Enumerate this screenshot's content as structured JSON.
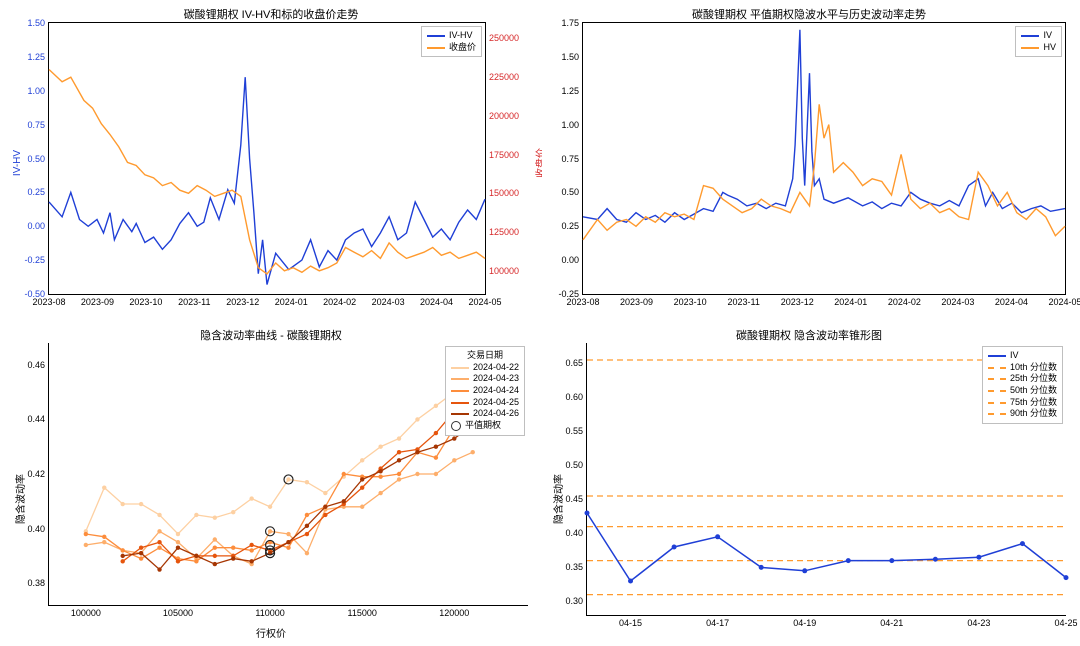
{
  "colors": {
    "blue": "#1f3fd6",
    "orange": "#ff9a2e",
    "red_axis": "#d62728",
    "grid": "#bfbfbf",
    "smile_palette": [
      "#fdd0a2",
      "#fdae6b",
      "#fd8d3c",
      "#e6550d",
      "#a63603"
    ],
    "dash": "#ff9a2e"
  },
  "chart1": {
    "title": "碳酸锂期权 IV-HV和标的收盘价走势",
    "ylabel_left": "IV-HV",
    "ylabel_right": "收盘价",
    "legend": [
      "IV-HV",
      "收盘价"
    ],
    "xticks": [
      "2023-08",
      "2023-09",
      "2023-10",
      "2023-11",
      "2023-12",
      "2024-01",
      "2024-02",
      "2024-03",
      "2024-04",
      "2024-05"
    ],
    "ylim_left": [
      -0.5,
      1.5
    ],
    "yticks_left": [
      -0.5,
      -0.25,
      0.0,
      0.25,
      0.5,
      0.75,
      1.0,
      1.25,
      1.5
    ],
    "ylim_right": [
      85000,
      260000
    ],
    "yticks_right": [
      100000,
      125000,
      150000,
      175000,
      200000,
      225000,
      250000
    ],
    "series_ivhv": [
      [
        0.0,
        0.18
      ],
      [
        0.03,
        0.07
      ],
      [
        0.05,
        0.25
      ],
      [
        0.07,
        0.05
      ],
      [
        0.09,
        0.0
      ],
      [
        0.11,
        0.05
      ],
      [
        0.125,
        -0.05
      ],
      [
        0.14,
        0.1
      ],
      [
        0.15,
        -0.1
      ],
      [
        0.17,
        0.05
      ],
      [
        0.19,
        -0.04
      ],
      [
        0.2,
        0.02
      ],
      [
        0.22,
        -0.12
      ],
      [
        0.24,
        -0.08
      ],
      [
        0.26,
        -0.17
      ],
      [
        0.28,
        -0.1
      ],
      [
        0.3,
        0.02
      ],
      [
        0.32,
        0.1
      ],
      [
        0.34,
        0.0
      ],
      [
        0.355,
        0.03
      ],
      [
        0.37,
        0.21
      ],
      [
        0.39,
        0.05
      ],
      [
        0.41,
        0.27
      ],
      [
        0.425,
        0.17
      ],
      [
        0.44,
        0.6
      ],
      [
        0.45,
        1.1
      ],
      [
        0.46,
        0.5
      ],
      [
        0.47,
        0.1
      ],
      [
        0.48,
        -0.35
      ],
      [
        0.49,
        -0.1
      ],
      [
        0.5,
        -0.43
      ],
      [
        0.52,
        -0.2
      ],
      [
        0.55,
        -0.32
      ],
      [
        0.58,
        -0.25
      ],
      [
        0.6,
        -0.1
      ],
      [
        0.62,
        -0.3
      ],
      [
        0.64,
        -0.18
      ],
      [
        0.66,
        -0.25
      ],
      [
        0.68,
        -0.1
      ],
      [
        0.7,
        -0.05
      ],
      [
        0.72,
        -0.02
      ],
      [
        0.74,
        -0.15
      ],
      [
        0.76,
        -0.05
      ],
      [
        0.78,
        0.07
      ],
      [
        0.8,
        -0.1
      ],
      [
        0.82,
        -0.05
      ],
      [
        0.84,
        0.18
      ],
      [
        0.86,
        0.05
      ],
      [
        0.88,
        -0.08
      ],
      [
        0.9,
        -0.02
      ],
      [
        0.92,
        -0.1
      ],
      [
        0.94,
        0.03
      ],
      [
        0.96,
        0.12
      ],
      [
        0.98,
        0.05
      ],
      [
        1.0,
        0.2
      ]
    ],
    "series_close": [
      [
        0.0,
        230000
      ],
      [
        0.03,
        222000
      ],
      [
        0.05,
        225000
      ],
      [
        0.08,
        210000
      ],
      [
        0.1,
        205000
      ],
      [
        0.12,
        195000
      ],
      [
        0.14,
        188000
      ],
      [
        0.16,
        180000
      ],
      [
        0.18,
        170000
      ],
      [
        0.2,
        168000
      ],
      [
        0.22,
        162000
      ],
      [
        0.24,
        160000
      ],
      [
        0.26,
        155000
      ],
      [
        0.28,
        157000
      ],
      [
        0.3,
        152000
      ],
      [
        0.32,
        150000
      ],
      [
        0.34,
        155000
      ],
      [
        0.36,
        152000
      ],
      [
        0.38,
        148000
      ],
      [
        0.4,
        150000
      ],
      [
        0.42,
        152000
      ],
      [
        0.44,
        148000
      ],
      [
        0.46,
        120000
      ],
      [
        0.48,
        102000
      ],
      [
        0.5,
        98000
      ],
      [
        0.52,
        105000
      ],
      [
        0.54,
        100000
      ],
      [
        0.56,
        102000
      ],
      [
        0.58,
        99000
      ],
      [
        0.6,
        103000
      ],
      [
        0.62,
        100000
      ],
      [
        0.64,
        102000
      ],
      [
        0.66,
        105000
      ],
      [
        0.68,
        115000
      ],
      [
        0.7,
        112000
      ],
      [
        0.72,
        109000
      ],
      [
        0.74,
        113000
      ],
      [
        0.76,
        108000
      ],
      [
        0.78,
        118000
      ],
      [
        0.8,
        112000
      ],
      [
        0.82,
        108000
      ],
      [
        0.84,
        110000
      ],
      [
        0.86,
        112000
      ],
      [
        0.88,
        115000
      ],
      [
        0.9,
        110000
      ],
      [
        0.92,
        112000
      ],
      [
        0.94,
        108000
      ],
      [
        0.96,
        110000
      ],
      [
        0.98,
        112000
      ],
      [
        1.0,
        108000
      ]
    ]
  },
  "chart2": {
    "title": "碳酸锂期权 平值期权隐波水平与历史波动率走势",
    "legend": [
      "IV",
      "HV"
    ],
    "xticks": [
      "2023-08",
      "2023-09",
      "2023-10",
      "2023-11",
      "2023-12",
      "2024-01",
      "2024-02",
      "2024-03",
      "2024-04",
      "2024-05"
    ],
    "ylim": [
      -0.25,
      1.75
    ],
    "yticks": [
      -0.25,
      0.0,
      0.25,
      0.5,
      0.75,
      1.0,
      1.25,
      1.5,
      1.75
    ],
    "series_iv": [
      [
        0.0,
        0.32
      ],
      [
        0.03,
        0.3
      ],
      [
        0.05,
        0.38
      ],
      [
        0.07,
        0.3
      ],
      [
        0.09,
        0.28
      ],
      [
        0.11,
        0.35
      ],
      [
        0.13,
        0.3
      ],
      [
        0.15,
        0.33
      ],
      [
        0.17,
        0.28
      ],
      [
        0.19,
        0.35
      ],
      [
        0.21,
        0.3
      ],
      [
        0.23,
        0.34
      ],
      [
        0.25,
        0.38
      ],
      [
        0.27,
        0.36
      ],
      [
        0.29,
        0.5
      ],
      [
        0.3,
        0.48
      ],
      [
        0.32,
        0.45
      ],
      [
        0.34,
        0.4
      ],
      [
        0.36,
        0.42
      ],
      [
        0.38,
        0.38
      ],
      [
        0.4,
        0.42
      ],
      [
        0.42,
        0.4
      ],
      [
        0.435,
        0.6
      ],
      [
        0.44,
        0.85
      ],
      [
        0.45,
        1.7
      ],
      [
        0.455,
        0.9
      ],
      [
        0.46,
        0.55
      ],
      [
        0.47,
        1.38
      ],
      [
        0.475,
        0.8
      ],
      [
        0.48,
        0.55
      ],
      [
        0.49,
        0.6
      ],
      [
        0.5,
        0.45
      ],
      [
        0.52,
        0.42
      ],
      [
        0.55,
        0.46
      ],
      [
        0.58,
        0.4
      ],
      [
        0.6,
        0.43
      ],
      [
        0.62,
        0.38
      ],
      [
        0.64,
        0.42
      ],
      [
        0.66,
        0.4
      ],
      [
        0.68,
        0.5
      ],
      [
        0.7,
        0.45
      ],
      [
        0.72,
        0.42
      ],
      [
        0.74,
        0.4
      ],
      [
        0.76,
        0.44
      ],
      [
        0.78,
        0.4
      ],
      [
        0.8,
        0.55
      ],
      [
        0.82,
        0.6
      ],
      [
        0.835,
        0.4
      ],
      [
        0.85,
        0.5
      ],
      [
        0.87,
        0.38
      ],
      [
        0.89,
        0.42
      ],
      [
        0.91,
        0.35
      ],
      [
        0.93,
        0.38
      ],
      [
        0.95,
        0.4
      ],
      [
        0.97,
        0.36
      ],
      [
        1.0,
        0.38
      ]
    ],
    "series_hv": [
      [
        0.0,
        0.15
      ],
      [
        0.03,
        0.3
      ],
      [
        0.05,
        0.22
      ],
      [
        0.07,
        0.28
      ],
      [
        0.09,
        0.3
      ],
      [
        0.11,
        0.25
      ],
      [
        0.13,
        0.32
      ],
      [
        0.15,
        0.28
      ],
      [
        0.17,
        0.35
      ],
      [
        0.19,
        0.32
      ],
      [
        0.21,
        0.34
      ],
      [
        0.23,
        0.3
      ],
      [
        0.25,
        0.55
      ],
      [
        0.27,
        0.53
      ],
      [
        0.29,
        0.45
      ],
      [
        0.31,
        0.4
      ],
      [
        0.33,
        0.35
      ],
      [
        0.35,
        0.38
      ],
      [
        0.37,
        0.45
      ],
      [
        0.39,
        0.4
      ],
      [
        0.41,
        0.38
      ],
      [
        0.43,
        0.35
      ],
      [
        0.45,
        0.5
      ],
      [
        0.46,
        0.45
      ],
      [
        0.47,
        0.4
      ],
      [
        0.48,
        0.7
      ],
      [
        0.49,
        1.15
      ],
      [
        0.5,
        0.9
      ],
      [
        0.51,
        1.0
      ],
      [
        0.52,
        0.65
      ],
      [
        0.54,
        0.72
      ],
      [
        0.56,
        0.65
      ],
      [
        0.58,
        0.55
      ],
      [
        0.6,
        0.6
      ],
      [
        0.62,
        0.58
      ],
      [
        0.64,
        0.48
      ],
      [
        0.66,
        0.78
      ],
      [
        0.68,
        0.45
      ],
      [
        0.7,
        0.38
      ],
      [
        0.72,
        0.42
      ],
      [
        0.74,
        0.35
      ],
      [
        0.76,
        0.38
      ],
      [
        0.78,
        0.32
      ],
      [
        0.8,
        0.3
      ],
      [
        0.82,
        0.65
      ],
      [
        0.84,
        0.55
      ],
      [
        0.86,
        0.4
      ],
      [
        0.88,
        0.5
      ],
      [
        0.9,
        0.35
      ],
      [
        0.92,
        0.3
      ],
      [
        0.94,
        0.38
      ],
      [
        0.96,
        0.32
      ],
      [
        0.98,
        0.18
      ],
      [
        1.0,
        0.25
      ]
    ]
  },
  "chart3": {
    "title": "隐含波动率曲线 - 碳酸锂期权",
    "xlabel": "行权价",
    "ylabel": "隐含波动率",
    "legend_title": "交易日期",
    "legend_dates": [
      "2024-04-22",
      "2024-04-23",
      "2024-04-24",
      "2024-04-25",
      "2024-04-26"
    ],
    "legend_atm": "平值期权",
    "xlim": [
      98000,
      124000
    ],
    "xticks": [
      100000,
      105000,
      110000,
      115000,
      120000
    ],
    "ylim": [
      0.372,
      0.468
    ],
    "yticks": [
      0.38,
      0.4,
      0.42,
      0.44,
      0.46
    ],
    "strikes": [
      100000,
      101000,
      102000,
      103000,
      104000,
      105000,
      106000,
      107000,
      108000,
      109000,
      110000,
      111000,
      112000,
      113000,
      114000,
      115000,
      116000,
      117000,
      118000,
      119000,
      120000,
      121000,
      122000,
      123000
    ],
    "smiles": [
      [
        0.399,
        0.415,
        0.409,
        0.409,
        0.405,
        0.398,
        0.405,
        0.404,
        0.406,
        0.411,
        0.408,
        0.418,
        0.417,
        0.413,
        0.419,
        0.425,
        0.43,
        0.433,
        0.44,
        0.445,
        0.45,
        0.455,
        null,
        null
      ],
      [
        0.394,
        0.395,
        0.392,
        0.391,
        0.399,
        0.395,
        0.389,
        0.396,
        0.39,
        0.387,
        0.399,
        0.398,
        0.391,
        0.407,
        0.408,
        0.408,
        0.413,
        0.418,
        0.42,
        0.42,
        0.425,
        0.428,
        null,
        null
      ],
      [
        0.398,
        0.397,
        0.392,
        0.389,
        0.393,
        0.389,
        0.388,
        0.393,
        0.393,
        0.392,
        0.395,
        0.393,
        0.405,
        0.408,
        0.42,
        0.419,
        0.419,
        0.42,
        0.428,
        0.426,
        0.437,
        0.44,
        null,
        null
      ],
      [
        null,
        null,
        0.388,
        0.393,
        0.395,
        0.388,
        0.39,
        0.39,
        0.39,
        0.394,
        0.392,
        0.395,
        0.398,
        0.405,
        0.409,
        0.415,
        0.422,
        0.428,
        0.429,
        0.435,
        0.443,
        0.45,
        0.45,
        null
      ],
      [
        null,
        null,
        0.39,
        0.391,
        0.385,
        0.393,
        0.39,
        0.387,
        0.389,
        0.388,
        0.391,
        0.395,
        0.401,
        0.408,
        0.41,
        0.418,
        0.421,
        0.425,
        0.428,
        0.43,
        0.433,
        0.438,
        0.441,
        0.45
      ]
    ],
    "atm_markers": [
      {
        "x": 111000,
        "y": 0.418
      },
      {
        "x": 110000,
        "y": 0.399
      },
      {
        "x": 110000,
        "y": 0.394
      },
      {
        "x": 110000,
        "y": 0.392
      },
      {
        "x": 110000,
        "y": 0.391
      }
    ]
  },
  "chart4": {
    "title": "碳酸锂期权 隐含波动率锥形图",
    "ylabel": "隐含波动率",
    "legend": [
      "IV",
      "10th 分位数",
      "25th 分位数",
      "50th 分位数",
      "75th 分位数",
      "90th 分位数"
    ],
    "xlim": [
      0,
      11
    ],
    "xticks_pos": [
      1,
      3,
      5,
      7,
      9,
      11
    ],
    "xticks_lab": [
      "04-15",
      "04-17",
      "04-19",
      "04-21",
      "04-23",
      "04-25"
    ],
    "ylim": [
      0.28,
      0.68
    ],
    "yticks": [
      0.3,
      0.35,
      0.4,
      0.45,
      0.5,
      0.55,
      0.6,
      0.65
    ],
    "percentiles": {
      "p10": 0.31,
      "p25": 0.36,
      "p50": 0.41,
      "p75": 0.455,
      "p90": 0.655
    },
    "series_iv": [
      [
        0,
        0.43
      ],
      [
        1,
        0.33
      ],
      [
        2,
        0.38
      ],
      [
        3,
        0.395
      ],
      [
        4,
        0.35
      ],
      [
        5,
        0.345
      ],
      [
        6,
        0.36
      ],
      [
        7,
        0.36
      ],
      [
        8,
        0.362
      ],
      [
        9,
        0.365
      ],
      [
        10,
        0.385
      ],
      [
        11,
        0.335
      ]
    ]
  }
}
